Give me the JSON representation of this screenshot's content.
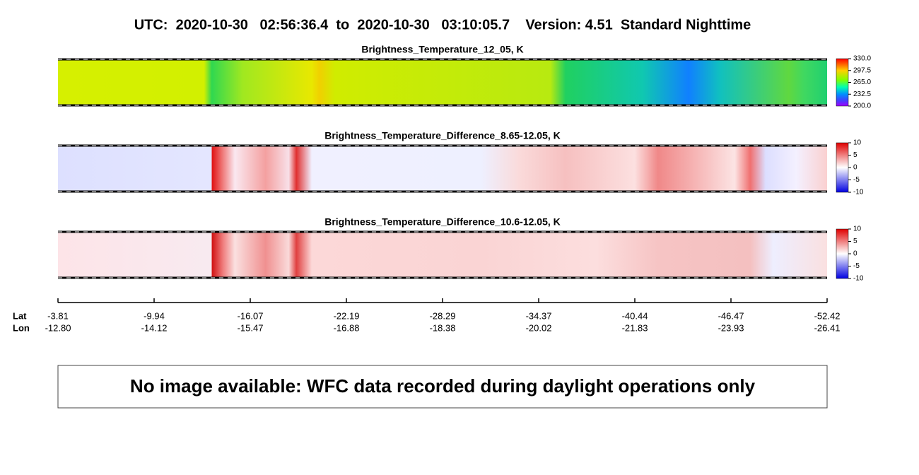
{
  "header": {
    "title": "UTC:  2020-10-30   02:56:36.4  to  2020-10-30   03:10:05.7    Version: 4.51  Standard Nighttime"
  },
  "panels": [
    {
      "title": "Brightness_Temperature_12_05, K",
      "colorbar_ticks": [
        "330.0",
        "297.5",
        "265.0",
        "232.5",
        "200.0"
      ]
    },
    {
      "title": "Brightness_Temperature_Difference_8.65-12.05, K",
      "colorbar_ticks": [
        "10",
        "5",
        "0",
        "-5",
        "-10"
      ]
    },
    {
      "title": "Brightness_Temperature_Difference_10.6-12.05, K",
      "colorbar_ticks": [
        "10",
        "5",
        "0",
        "-5",
        "-10"
      ]
    }
  ],
  "axis": {
    "lat_label": "Lat",
    "lon_label": "Lon",
    "lat": [
      "-3.81",
      "-9.94",
      "-16.07",
      "-22.19",
      "-28.29",
      "-34.37",
      "-40.44",
      "-46.47",
      "-52.42"
    ],
    "lon": [
      "-12.80",
      "-14.12",
      "-15.47",
      "-16.88",
      "-18.38",
      "-20.02",
      "-21.83",
      "-23.93",
      "-26.41"
    ]
  },
  "message": "No image available: WFC data recorded during daylight operations only"
}
